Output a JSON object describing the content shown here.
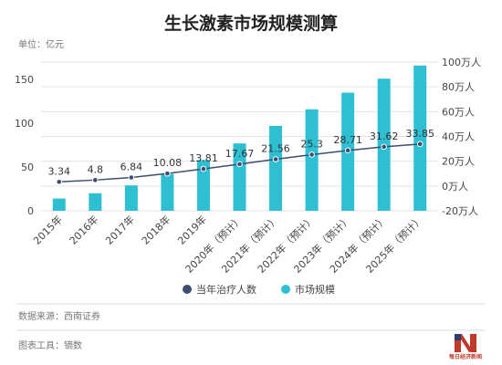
{
  "page": {
    "title": "生长激素市场规模测算",
    "unit_label": "单位：亿元",
    "source": "数据来源：西南证券",
    "tool": "图表工具：镝数",
    "logo_text": "每日经济新闻"
  },
  "colors": {
    "bar": "#2ebfd3",
    "line": "#3a4e6e",
    "grid": "#e3e3e3",
    "divider": "#dddddd"
  },
  "chart_data": {
    "type": "bar+line",
    "categories": [
      "2015年",
      "2016年",
      "2017年",
      "2018年",
      "2019年",
      "2020年（预计）",
      "2021年（预计）",
      "2022年（预计）",
      "2023年（预计）",
      "2024年（预计）",
      "2025年（预计）"
    ],
    "y_left": {
      "min": 0,
      "max": 170,
      "ticks": [
        0,
        50,
        100,
        150
      ]
    },
    "y_right": {
      "min": -20,
      "max": 100,
      "ticks": [
        -20,
        0,
        20,
        40,
        60,
        80,
        100
      ],
      "tick_labels": [
        "-20万人",
        "0万人",
        "20万人",
        "40万人",
        "60万人",
        "80万人",
        "100万人"
      ]
    },
    "series": [
      {
        "name": "当年治疗人数",
        "type": "line",
        "axis": "right",
        "values": [
          3.34,
          4.8,
          6.84,
          10.08,
          13.81,
          17.67,
          21.56,
          25.3,
          28.71,
          31.62,
          33.85
        ],
        "labels": [
          "3.34",
          "4.8",
          "6.84",
          "10.08",
          "13.81",
          "17.67",
          "21.56",
          "25.3",
          "28.71",
          "31.62",
          "33.85"
        ]
      },
      {
        "name": "市场规模",
        "type": "bar",
        "axis": "left",
        "values": [
          14,
          20,
          29,
          42,
          58,
          77,
          97,
          116,
          135,
          151,
          166
        ]
      }
    ],
    "legend_position": "bottom"
  }
}
